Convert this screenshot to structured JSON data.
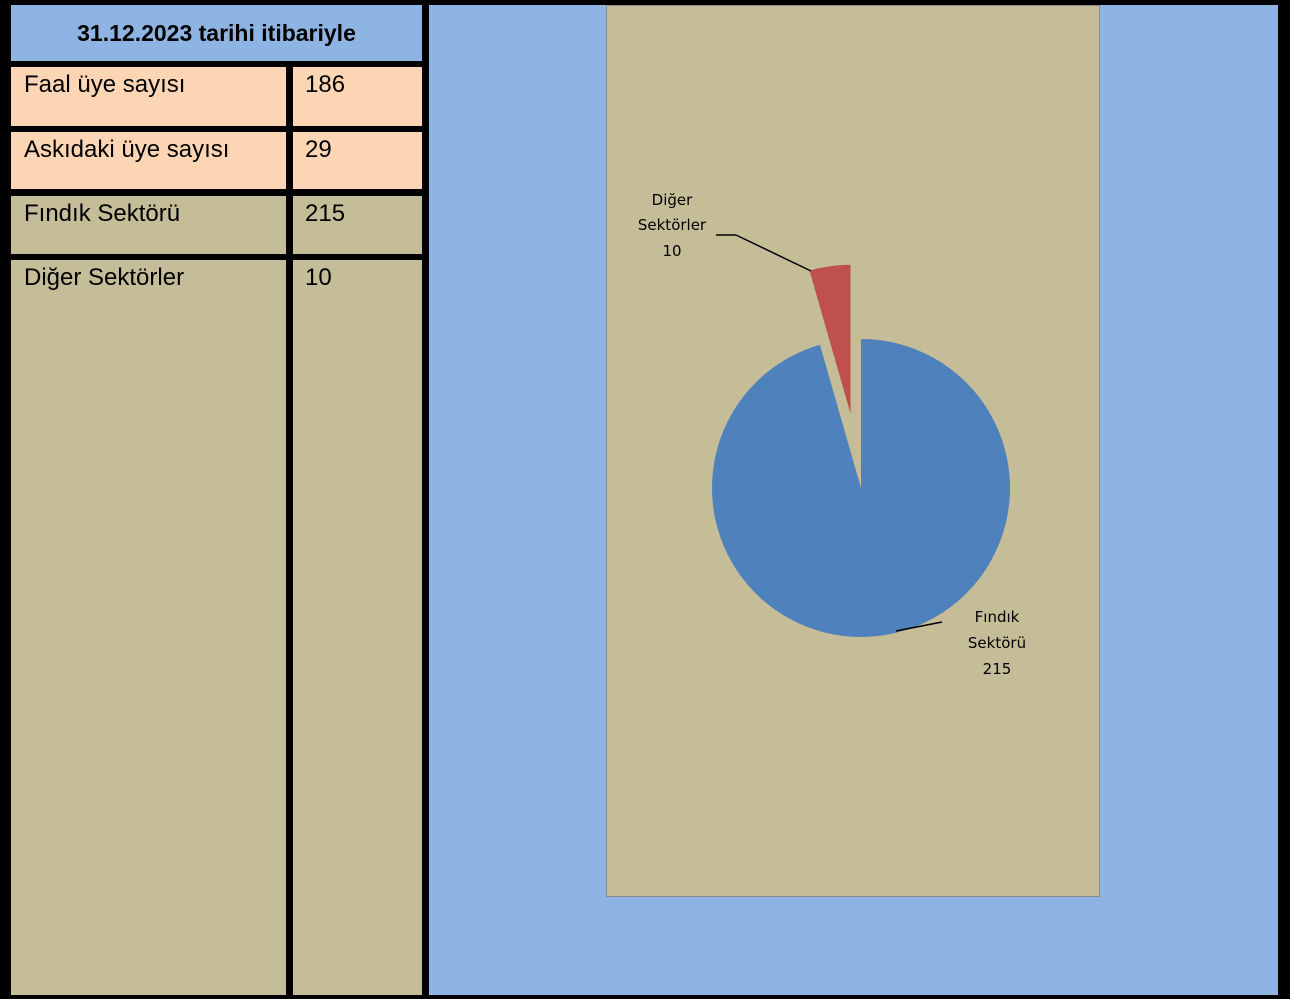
{
  "table": {
    "header": "31.12.2023 tarihi itibariyle",
    "rows": [
      {
        "label": "Faal üye sayısı",
        "value": "186"
      },
      {
        "label": "Askıdaki üye sayısı",
        "value": "29"
      },
      {
        "label": "Fındık Sektörü",
        "value": "215"
      },
      {
        "label": "Diğer Sektörler",
        "value": "10"
      }
    ]
  },
  "colors": {
    "header_bg": "#8DB4E2",
    "peach": "#FCD5B4",
    "khaki": "#C4BD97",
    "panel_bg": "#8DB4E2",
    "fındık": "#4F81BD",
    "diğer": "#C0504D"
  },
  "chart_data": {
    "type": "pie",
    "slices": [
      {
        "name": "Fındık Sektörü",
        "value": 215,
        "label_lines": [
          "Fındık",
          "Sektörü",
          "215"
        ],
        "color": "#4F81BD"
      },
      {
        "name": "Diğer Sektörler",
        "value": 10,
        "label_lines": [
          "Diğer",
          "Sektörler",
          "10"
        ],
        "color": "#C0504D",
        "exploded": true
      }
    ]
  }
}
